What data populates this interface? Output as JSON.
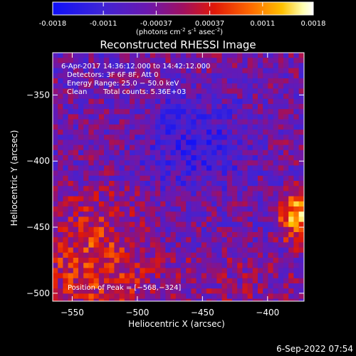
{
  "colorbar": {
    "tick_labels": [
      "-0.0018",
      "-0.0011",
      "-0.00037",
      "0.00037",
      "0.0011",
      "0.0018"
    ],
    "tick_values": [
      -0.0018,
      -0.0011,
      -0.00037,
      0.00037,
      0.0011,
      0.0018
    ],
    "range": [
      -0.0018,
      0.0018
    ],
    "units_label": "(photons cm",
    "units_exp1": "-2",
    "units_mid": " s",
    "units_exp2": "-1",
    "units_mid2": " asec",
    "units_exp3": "-2",
    "units_end": ")"
  },
  "chart_data": {
    "type": "heatmap",
    "title": "Reconstructed RHESSI Image",
    "xlabel": "Heliocentric X (arcsec)",
    "ylabel": "Heliocentric Y (arcsec)",
    "xlim": [
      -565,
      -372
    ],
    "ylim": [
      -506,
      -318
    ],
    "x_ticks": [
      -550,
      -500,
      -450,
      -400
    ],
    "x_tick_labels": [
      "−550",
      "−500",
      "−450",
      "−400"
    ],
    "y_ticks": [
      -500,
      -450,
      -400,
      -350
    ],
    "y_tick_labels": [
      "−500",
      "−450",
      "−400",
      "−350"
    ],
    "colormap": "rainbow-to-hot (blue-purple-red-orange-yellow-white)",
    "annotations": {
      "time": "6-Apr-2017 14:36:12.000 to 14:42:12.000",
      "detectors": "Detectors: 3F 6F 8F, Att 0",
      "energy": "Energy Range: 25.0 − 50.0 keV",
      "clean": "Clean",
      "counts": "Total counts: 5.36E+03",
      "peak": "Position of Peak = [−568,−324]"
    },
    "peak_position": [
      -568,
      -324
    ]
  },
  "footer": {
    "date": "6-Sep-2022 07:54"
  }
}
